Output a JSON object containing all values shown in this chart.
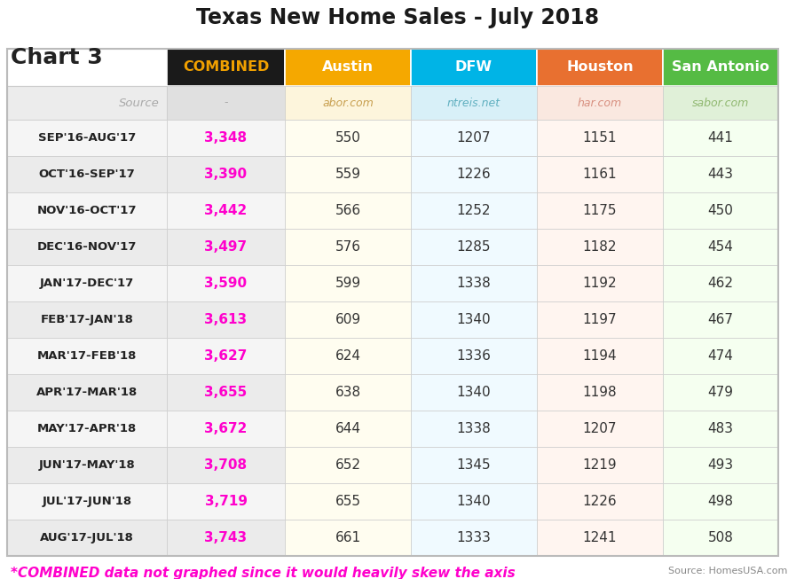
{
  "title": "Texas New Home Sales - July 2018",
  "chart_label": "Chart 3",
  "periods": [
    "SEP'16-AUG'17",
    "OCT'16-SEP'17",
    "NOV'16-OCT'17",
    "DEC'16-NOV'17",
    "JAN'17-DEC'17",
    "FEB'17-JAN'18",
    "MAR'17-FEB'18",
    "APR'17-MAR'18",
    "MAY'17-APR'18",
    "JUN'17-MAY'18",
    "JUL'17-JUN'18",
    "AUG'17-JUL'18"
  ],
  "combined": [
    3348,
    3390,
    3442,
    3497,
    3590,
    3613,
    3627,
    3655,
    3672,
    3708,
    3719,
    3743
  ],
  "austin": [
    550,
    559,
    566,
    576,
    599,
    609,
    624,
    638,
    644,
    652,
    655,
    661
  ],
  "dfw": [
    1207,
    1226,
    1252,
    1285,
    1338,
    1340,
    1336,
    1340,
    1338,
    1345,
    1340,
    1333
  ],
  "houston": [
    1151,
    1161,
    1175,
    1182,
    1192,
    1197,
    1194,
    1198,
    1207,
    1219,
    1226,
    1241
  ],
  "san_antonio": [
    441,
    443,
    450,
    454,
    462,
    467,
    474,
    479,
    483,
    493,
    498,
    508
  ],
  "col_headers": [
    "COMBINED",
    "Austin",
    "DFW",
    "Houston",
    "San Antonio"
  ],
  "col_sources": [
    "-",
    "abor.com",
    "ntreis.net",
    "har.com",
    "sabor.com"
  ],
  "header_bg_colors": [
    "#1a1a1a",
    "#F5A800",
    "#00B4E6",
    "#E87030",
    "#55BB44"
  ],
  "header_text_colors": [
    "#F0A000",
    "#FFFFFF",
    "#FFFFFF",
    "#FFFFFF",
    "#FFFFFF"
  ],
  "source_row_bgs": [
    "#E0E0E0",
    "#FDF5DC",
    "#D8F0F8",
    "#FAE8E0",
    "#E0F0D8"
  ],
  "source_text_colors": [
    "#AAAAAA",
    "#C8A050",
    "#60B0C0",
    "#D89080",
    "#90B870"
  ],
  "combined_color": "#FF00CC",
  "data_color": "#333333",
  "row_bg_white": "#FFFFFF",
  "row_bg_gray": "#F2F2F2",
  "period_bg": "#DDDDDD",
  "combined_bg": "#DDDDDD",
  "footer_text": "*COMBINED data not graphed since it would heavily skew the axis",
  "footer_color": "#FF00CC",
  "source_note": "Source: HomesUSA.com",
  "source_note_color": "#888888",
  "bg_color": "#FFFFFF"
}
